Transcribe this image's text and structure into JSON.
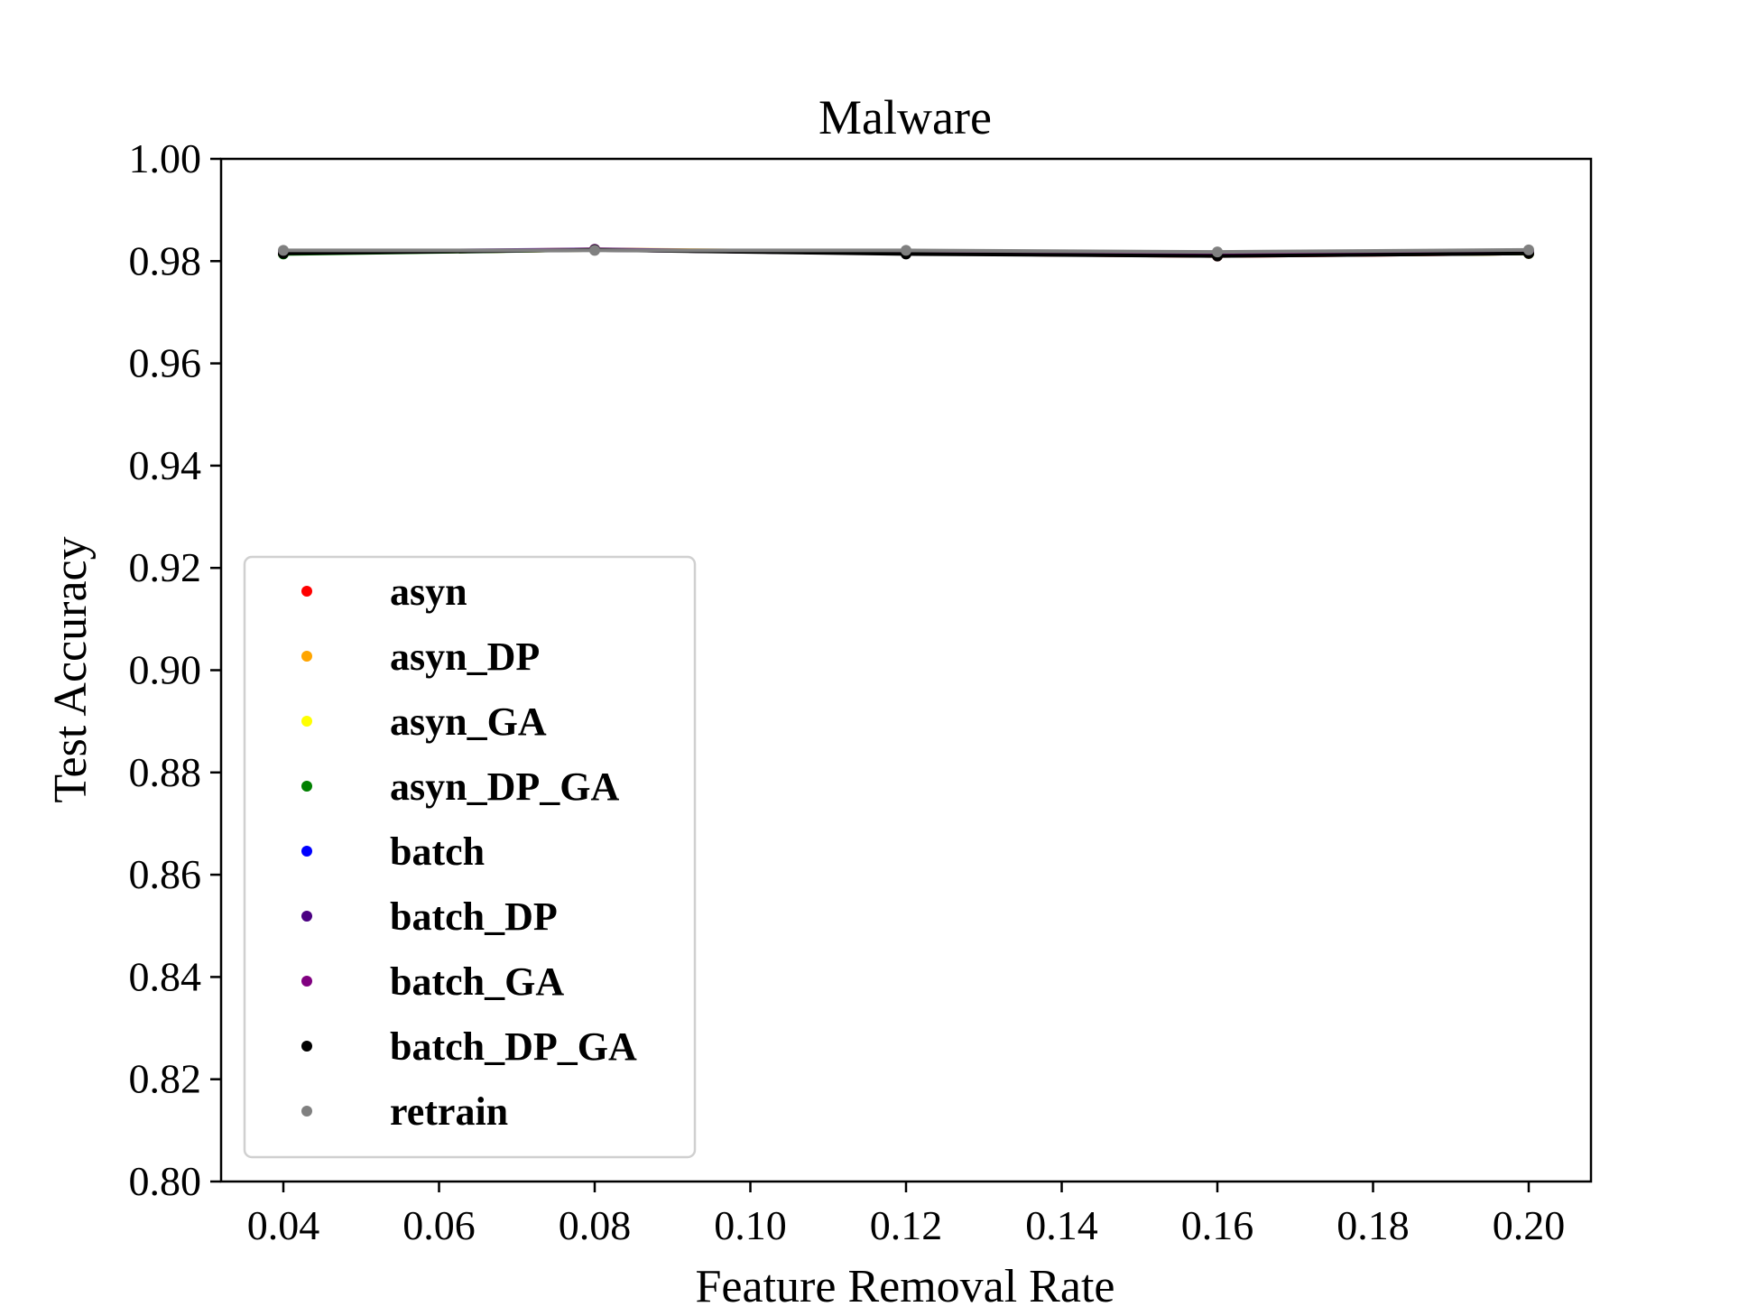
{
  "chart_data": {
    "type": "line",
    "title": "Malware",
    "xlabel": "Feature Removal Rate",
    "ylabel": "Test Accuracy",
    "xlim": [
      0.032,
      0.208
    ],
    "ylim": [
      0.8,
      1.0
    ],
    "xticks": [
      0.04,
      0.06,
      0.08,
      0.1,
      0.12,
      0.14,
      0.16,
      0.18,
      0.2
    ],
    "xtick_labels": [
      "0.04",
      "0.06",
      "0.08",
      "0.10",
      "0.12",
      "0.14",
      "0.16",
      "0.18",
      "0.20"
    ],
    "yticks": [
      0.8,
      0.82,
      0.84,
      0.86,
      0.88,
      0.9,
      0.92,
      0.94,
      0.96,
      0.98,
      1.0
    ],
    "ytick_labels": [
      "0.80",
      "0.82",
      "0.84",
      "0.86",
      "0.88",
      "0.90",
      "0.92",
      "0.94",
      "0.96",
      "0.98",
      "1.00"
    ],
    "grid": false,
    "legend_position": "lower-left",
    "x": [
      0.04,
      0.08,
      0.12,
      0.16,
      0.2
    ],
    "series": [
      {
        "name": "asyn",
        "color": "#ff0000",
        "values": [
          0.9815,
          0.9822,
          0.9815,
          0.981,
          0.9815
        ]
      },
      {
        "name": "asyn_DP",
        "color": "#ffa500",
        "values": [
          0.9816,
          0.9823,
          0.9818,
          0.9812,
          0.9816
        ]
      },
      {
        "name": "asyn_GA",
        "color": "#ffff00",
        "values": [
          0.9815,
          0.9822,
          0.9816,
          0.9811,
          0.9815
        ]
      },
      {
        "name": "asyn_DP_GA",
        "color": "#008000",
        "values": [
          0.9814,
          0.9822,
          0.9815,
          0.9811,
          0.9815
        ]
      },
      {
        "name": "batch",
        "color": "#0000ff",
        "values": [
          0.9817,
          0.9822,
          0.9815,
          0.9812,
          0.9818
        ]
      },
      {
        "name": "batch_DP",
        "color": "#4b0082",
        "values": [
          0.9818,
          0.9823,
          0.9816,
          0.9812,
          0.9819
        ]
      },
      {
        "name": "batch_GA",
        "color": "#800080",
        "values": [
          0.9817,
          0.9822,
          0.9815,
          0.9811,
          0.9818
        ]
      },
      {
        "name": "batch_DP_GA",
        "color": "#000000",
        "values": [
          0.9815,
          0.9822,
          0.9814,
          0.981,
          0.9815
        ]
      },
      {
        "name": "retrain",
        "color": "#808080",
        "values": [
          0.9821,
          0.9821,
          0.9821,
          0.9818,
          0.9822
        ]
      }
    ]
  }
}
